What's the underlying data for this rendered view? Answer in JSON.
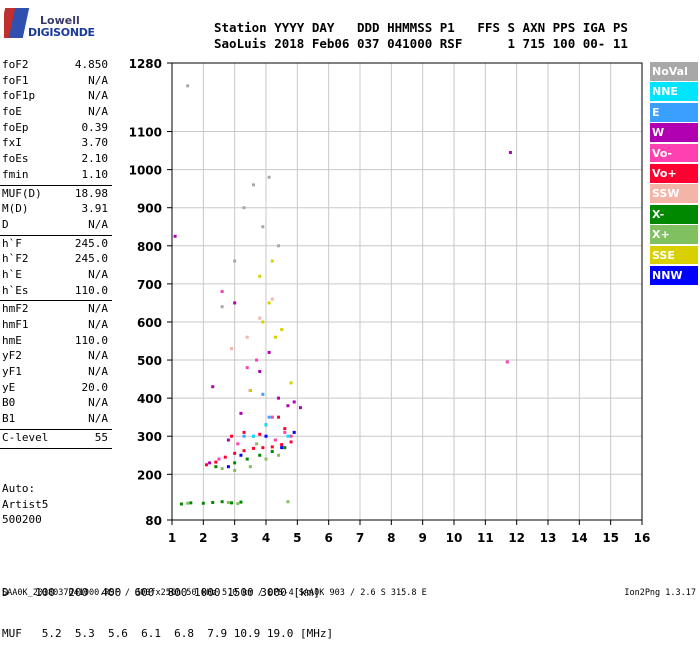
{
  "logo": {
    "line1": "Lowell",
    "line2": "DIGISONDE"
  },
  "header": {
    "line1": "Station YYYY DAY   DDD HHMMSS P1   FFS S AXN PPS IGA PS",
    "line2": "SaoLuis 2018 Feb06 037 041000 RSF      1 715 100 00- 11"
  },
  "params": {
    "group1": [
      {
        "label": "foF2",
        "value": "4.850"
      },
      {
        "label": "foF1",
        "value": "N/A"
      },
      {
        "label": "foF1p",
        "value": "N/A"
      },
      {
        "label": "foE",
        "value": "N/A"
      },
      {
        "label": "foEp",
        "value": "0.39"
      },
      {
        "label": "fxI",
        "value": "3.70"
      },
      {
        "label": "foEs",
        "value": "2.10"
      },
      {
        "label": "fmin",
        "value": "1.10"
      }
    ],
    "group2": [
      {
        "label": "MUF(D)",
        "value": "18.98"
      },
      {
        "label": "M(D)",
        "value": "3.91"
      },
      {
        "label": "D",
        "value": "N/A"
      }
    ],
    "group3": [
      {
        "label": "h`F",
        "value": "245.0"
      },
      {
        "label": "h`F2",
        "value": "245.0"
      },
      {
        "label": "h`E",
        "value": "N/A"
      },
      {
        "label": "h`Es",
        "value": "110.0"
      }
    ],
    "group4": [
      {
        "label": "hmF2",
        "value": "N/A"
      },
      {
        "label": "hmF1",
        "value": "N/A"
      },
      {
        "label": "hmE",
        "value": "110.0"
      },
      {
        "label": "yF2",
        "value": "N/A"
      },
      {
        "label": "yF1",
        "value": "N/A"
      },
      {
        "label": "yE",
        "value": "20.0"
      },
      {
        "label": "B0",
        "value": "N/A"
      },
      {
        "label": "B1",
        "value": "N/A"
      }
    ],
    "group5": [
      {
        "label": "C-level",
        "value": "55"
      }
    ]
  },
  "auto": {
    "line1": "Auto:",
    "line2": "Artist5",
    "line3": "500200"
  },
  "legend": [
    {
      "label": "NoVal",
      "color": "#a8a8a8"
    },
    {
      "label": "NNE",
      "color": "#00e5ff"
    },
    {
      "label": "E",
      "color": "#3aa0ff"
    },
    {
      "label": "W",
      "color": "#b000b0"
    },
    {
      "label": "Vo-",
      "color": "#ff40b0"
    },
    {
      "label": "Vo+",
      "color": "#ff0030"
    },
    {
      "label": "SSW",
      "color": "#f4b4a8"
    },
    {
      "label": "X-",
      "color": "#008800"
    },
    {
      "label": "X+",
      "color": "#80c060"
    },
    {
      "label": "SSE",
      "color": "#d8d000"
    },
    {
      "label": "NNW",
      "color": "#0000ff"
    }
  ],
  "chart_data": {
    "type": "scatter",
    "title": "",
    "xlabel": "",
    "ylabel": "",
    "xlim": [
      1,
      16
    ],
    "ylim": [
      80,
      1280
    ],
    "xticks": [
      "1",
      "2",
      "3",
      "4",
      "5",
      "6",
      "7",
      "8",
      "9",
      "10",
      "11",
      "12",
      "13",
      "14",
      "15",
      "16"
    ],
    "yticks": [
      {
        "value": 80,
        "label": "80"
      },
      {
        "value": 200,
        "label": "200"
      },
      {
        "value": 300,
        "label": "300"
      },
      {
        "value": 400,
        "label": "400"
      },
      {
        "value": 500,
        "label": "500"
      },
      {
        "value": 600,
        "label": "600"
      },
      {
        "value": 700,
        "label": "700"
      },
      {
        "value": 800,
        "label": "800"
      },
      {
        "value": 900,
        "label": "900"
      },
      {
        "value": 1000,
        "label": "1000"
      },
      {
        "value": 1100,
        "label": "1100"
      },
      {
        "value": 1280,
        "label": "1280"
      }
    ],
    "grid": true,
    "series": [
      {
        "name": "Vo+",
        "color": "#ff0030",
        "points": [
          [
            2.1,
            225
          ],
          [
            2.4,
            232
          ],
          [
            2.7,
            245
          ],
          [
            3.0,
            255
          ],
          [
            3.3,
            262
          ],
          [
            3.6,
            268
          ],
          [
            3.9,
            270
          ],
          [
            4.2,
            272
          ],
          [
            4.5,
            278
          ],
          [
            4.8,
            285
          ],
          [
            2.9,
            300
          ],
          [
            3.3,
            310
          ],
          [
            4.0,
            330
          ],
          [
            4.4,
            350
          ],
          [
            3.8,
            305
          ],
          [
            4.6,
            320
          ]
        ]
      },
      {
        "name": "W",
        "color": "#b000b0",
        "points": [
          [
            2.2,
            230
          ],
          [
            2.8,
            290
          ],
          [
            3.2,
            360
          ],
          [
            3.5,
            420
          ],
          [
            3.8,
            470
          ],
          [
            4.1,
            520
          ],
          [
            4.4,
            400
          ],
          [
            4.7,
            380
          ],
          [
            3.0,
            650
          ],
          [
            2.3,
            430
          ],
          [
            1.1,
            825
          ],
          [
            11.8,
            1045
          ],
          [
            5.1,
            375
          ],
          [
            4.9,
            390
          ]
        ]
      },
      {
        "name": "Vo-",
        "color": "#ff40b0",
        "points": [
          [
            2.5,
            240
          ],
          [
            3.1,
            280
          ],
          [
            3.6,
            300
          ],
          [
            4.2,
            350
          ],
          [
            4.6,
            310
          ],
          [
            3.4,
            480
          ],
          [
            2.6,
            680
          ],
          [
            3.7,
            500
          ],
          [
            4.3,
            290
          ],
          [
            4.8,
            300
          ],
          [
            11.7,
            495
          ]
        ]
      },
      {
        "name": "X-",
        "color": "#008800",
        "points": [
          [
            1.3,
            122
          ],
          [
            1.6,
            125
          ],
          [
            2.0,
            124
          ],
          [
            2.3,
            126
          ],
          [
            2.6,
            128
          ],
          [
            2.9,
            125
          ],
          [
            3.2,
            127
          ],
          [
            2.4,
            220
          ],
          [
            3.0,
            230
          ],
          [
            3.4,
            240
          ],
          [
            3.8,
            250
          ],
          [
            4.2,
            260
          ],
          [
            4.6,
            270
          ]
        ]
      },
      {
        "name": "X+",
        "color": "#80c060",
        "points": [
          [
            2.6,
            215
          ],
          [
            3.0,
            210
          ],
          [
            3.5,
            220
          ],
          [
            4.0,
            240
          ],
          [
            4.4,
            250
          ],
          [
            3.7,
            280
          ],
          [
            1.5,
            124
          ],
          [
            2.8,
            126
          ],
          [
            3.1,
            123
          ],
          [
            4.7,
            128
          ]
        ]
      },
      {
        "name": "SSE",
        "color": "#d8d000",
        "points": [
          [
            3.9,
            600
          ],
          [
            4.1,
            650
          ],
          [
            4.3,
            560
          ],
          [
            3.5,
            420
          ],
          [
            3.8,
            720
          ],
          [
            4.5,
            580
          ],
          [
            4.8,
            440
          ],
          [
            4.2,
            760
          ]
        ]
      },
      {
        "name": "NoVal",
        "color": "#a8a8a8",
        "points": [
          [
            3.3,
            900
          ],
          [
            3.6,
            960
          ],
          [
            3.9,
            850
          ],
          [
            4.1,
            980
          ],
          [
            4.4,
            800
          ],
          [
            3.0,
            760
          ],
          [
            2.6,
            640
          ],
          [
            1.5,
            1220
          ]
        ]
      },
      {
        "name": "NNW",
        "color": "#0000ff",
        "points": [
          [
            4.0,
            300
          ],
          [
            4.5,
            270
          ],
          [
            3.2,
            250
          ],
          [
            2.8,
            220
          ],
          [
            4.9,
            310
          ]
        ]
      },
      {
        "name": "NNE",
        "color": "#00e5ff",
        "points": [
          [
            3.6,
            300
          ],
          [
            4.0,
            330
          ],
          [
            4.7,
            300
          ]
        ]
      },
      {
        "name": "E",
        "color": "#3aa0ff",
        "points": [
          [
            3.3,
            300
          ],
          [
            4.1,
            350
          ],
          [
            3.9,
            410
          ]
        ]
      },
      {
        "name": "SSW",
        "color": "#f4b4a8",
        "points": [
          [
            3.4,
            560
          ],
          [
            3.8,
            610
          ],
          [
            4.2,
            660
          ],
          [
            2.9,
            530
          ]
        ]
      }
    ]
  },
  "muf_table": {
    "line1": "D    100  200  400  600  800 1000 1500 3000 [km]",
    "line2": "MUF   5.2  5.3  5.6  6.1  6.8  7.9 10.9 19.0 [MHz]"
  },
  "footer": {
    "text": "SAA0K_2018037041000.RSF / 300fx256h 50 kHz 5.0 km / DPS-4 SAA0K 903 / 2.6 S 315.8 E",
    "version": "Ion2Png 1.3.17"
  }
}
